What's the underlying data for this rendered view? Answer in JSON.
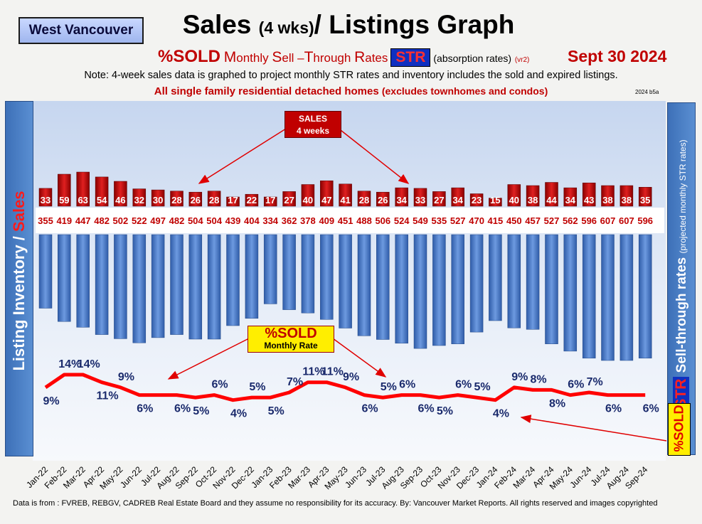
{
  "header": {
    "region": "West Vancouver",
    "title_main": "Sales",
    "title_small": "(4 wks)",
    "title_rest": "/ Listings Graph",
    "subtitle_sold": "%SOLD",
    "subtitle_m": "M",
    "subtitle_onthly": "onthly",
    "subtitle_s": "S",
    "subtitle_ell": "ell –",
    "subtitle_t": "T",
    "subtitle_hrough": "hrough",
    "subtitle_r": "R",
    "subtitle_ates": "ates",
    "str_badge": "STR",
    "absorption": "(absorption rates)",
    "version_tag": "(vr2)",
    "date": "Sept  30  2024",
    "note": "Note: 4-week sales data is graphed to project monthly STR rates and inventory includes the sold and expired listings.",
    "scope_main": "All single family residential detached homes",
    "scope_sub": "(excludes townhomes and condos)",
    "code": "2024 b5a"
  },
  "side_labels": {
    "left_inventory": "Listing Inventory /",
    "left_sales": "Sales",
    "right_main": "Sell-through rates",
    "right_note": "(projected monthly STR rates)",
    "right_str": "STR",
    "sold_vertical": "%SOLD"
  },
  "callouts": {
    "sales_line1": "SALES",
    "sales_line2": "4  weeks",
    "sold_line1": "%SOLD",
    "sold_line2": "Monthly Rate"
  },
  "footer": "Data is from : FVREB, REBGV, CADREB Real Estate Board and they assume no responsibility for its accuracy. By: Vancouver Market Reports. All rights reserved and  images copyrighted",
  "colors": {
    "sales_bar": "#c00000",
    "inventory_bar": "#3f6fc0",
    "sold_line": "#ff0000",
    "label_blue": "#1a2a6c"
  },
  "chart_data": {
    "type": "bar",
    "categories": [
      "Jan-22",
      "Feb-22",
      "Mar-22",
      "Apr-22",
      "May-22",
      "Jun-22",
      "Jul-22",
      "Aug-22",
      "Sep-22",
      "Oct-22",
      "Nov-22",
      "Dec-22",
      "Jan-23",
      "Feb-23",
      "Mar-23",
      "Apr-23",
      "May-23",
      "Jun-23",
      "Jul-23",
      "Aug-23",
      "Sep-23",
      "Oct-23",
      "Nov-23",
      "Dec-23",
      "Jan-24",
      "Feb-24",
      "Mar-24",
      "Apr-24",
      "May-24",
      "Jun-24",
      "Jul-24",
      "Aug-24",
      "Sep-24"
    ],
    "series": [
      {
        "name": "Sales",
        "values": [
          33,
          59,
          63,
          54,
          46,
          32,
          30,
          28,
          26,
          28,
          17,
          22,
          17,
          27,
          40,
          47,
          41,
          28,
          26,
          34,
          33,
          27,
          34,
          23,
          15,
          40,
          38,
          44,
          34,
          43,
          38,
          38,
          35
        ]
      },
      {
        "name": "Listing Inventory",
        "values": [
          355,
          419,
          447,
          482,
          502,
          522,
          497,
          482,
          504,
          504,
          439,
          404,
          334,
          362,
          378,
          409,
          451,
          488,
          506,
          524,
          549,
          535,
          527,
          470,
          415,
          450,
          457,
          527,
          562,
          596,
          607,
          607,
          596
        ]
      },
      {
        "name": "%SOLD Monthly Rate",
        "values": [
          9,
          14,
          14,
          11,
          9,
          6,
          6,
          6,
          5,
          6,
          4,
          5,
          5,
          7,
          11,
          11,
          9,
          6,
          5,
          6,
          6,
          5,
          6,
          5,
          4,
          9,
          8,
          8,
          6,
          7,
          6,
          6,
          6
        ]
      }
    ],
    "sold_labels": [
      "9%",
      "14%",
      "14%",
      "11%",
      "9%",
      "6%",
      "6%",
      "6%",
      "5%",
      "6%",
      "4%",
      "5%",
      "5%",
      "7%",
      "11%",
      "11%",
      "9%",
      "6%",
      "5%",
      "6%",
      "6%",
      "5%",
      "6%",
      "5%",
      "4%",
      "9%",
      "8%",
      "8%",
      "6%",
      "7%",
      "6%",
      "6%",
      "6%"
    ],
    "sold_label_below": [
      true,
      false,
      false,
      true,
      false,
      true,
      false,
      true,
      true,
      false,
      true,
      false,
      true,
      false,
      false,
      false,
      false,
      true,
      false,
      false,
      true,
      true,
      false,
      false,
      true,
      false,
      false,
      true,
      false,
      false,
      true,
      false,
      true
    ],
    "sold_label_hidden": [
      false,
      false,
      false,
      false,
      false,
      false,
      true,
      false,
      false,
      false,
      false,
      false,
      false,
      false,
      false,
      false,
      false,
      false,
      false,
      false,
      false,
      false,
      false,
      false,
      false,
      false,
      false,
      false,
      false,
      false,
      false,
      true,
      false
    ],
    "legend": "none",
    "grid": false
  }
}
